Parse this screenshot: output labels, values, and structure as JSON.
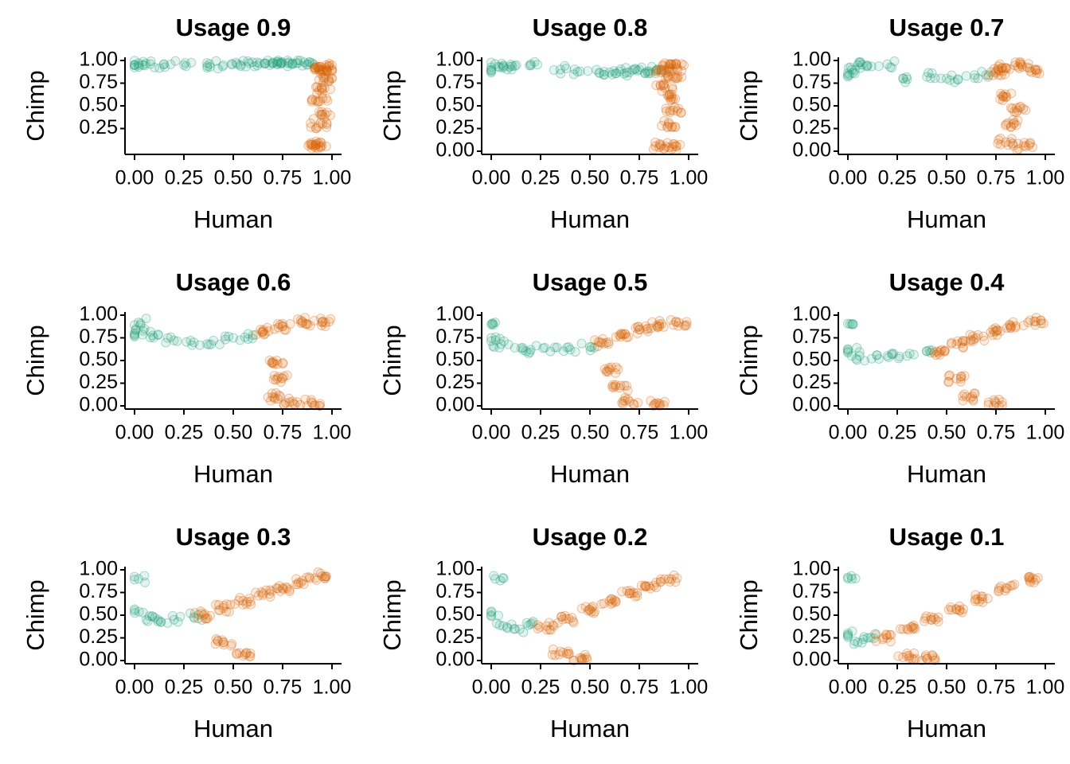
{
  "chart_data": [
    {
      "type": "scatter",
      "title": "Usage 0.9",
      "xlabel": "Human",
      "ylabel": "Chimp",
      "xlim": [
        0,
        1
      ],
      "ylim": [
        0.03,
        1.0
      ],
      "xticks": [
        "0.00",
        "0.25",
        "0.50",
        "0.75",
        "1.00"
      ],
      "yticks": [
        "0.25",
        "0.50",
        "0.75",
        "1.00"
      ],
      "series": [
        {
          "color": "#1b9e77",
          "values": [
            [
              0.0,
              0.95
            ],
            [
              0.02,
              0.97
            ],
            [
              0.08,
              0.96
            ],
            [
              0.15,
              0.96
            ],
            [
              0.25,
              0.95
            ],
            [
              0.38,
              0.96
            ],
            [
              0.45,
              0.95
            ],
            [
              0.52,
              0.96
            ],
            [
              0.58,
              0.97
            ],
            [
              0.62,
              0.98
            ],
            [
              0.66,
              0.97
            ],
            [
              0.7,
              0.98
            ],
            [
              0.74,
              0.97
            ],
            [
              0.78,
              0.98
            ],
            [
              0.82,
              0.97
            ],
            [
              0.86,
              0.98
            ],
            [
              0.9,
              0.97
            ]
          ]
        },
        {
          "color": "#d95f02",
          "values": [
            [
              0.93,
              0.93
            ],
            [
              0.95,
              0.9
            ],
            [
              0.97,
              0.92
            ],
            [
              0.96,
              0.8
            ],
            [
              0.95,
              0.68
            ],
            [
              0.94,
              0.55
            ],
            [
              0.95,
              0.4
            ],
            [
              0.93,
              0.27
            ],
            [
              0.92,
              0.08
            ],
            [
              0.94,
              0.05
            ]
          ]
        }
      ]
    },
    {
      "type": "scatter",
      "title": "Usage 0.8",
      "xlabel": "Human",
      "ylabel": "Chimp",
      "xlim": [
        0,
        1
      ],
      "ylim": [
        0,
        1.0
      ],
      "xticks": [
        "0.00",
        "0.25",
        "0.50",
        "0.75",
        "1.00"
      ],
      "yticks": [
        "0.00",
        "0.25",
        "0.50",
        "0.75",
        "1.00"
      ],
      "series": [
        {
          "color": "#1b9e77",
          "values": [
            [
              0.0,
              0.9
            ],
            [
              0.02,
              0.96
            ],
            [
              0.06,
              0.92
            ],
            [
              0.12,
              0.94
            ],
            [
              0.2,
              0.96
            ],
            [
              0.35,
              0.9
            ],
            [
              0.45,
              0.88
            ],
            [
              0.55,
              0.86
            ],
            [
              0.6,
              0.87
            ],
            [
              0.65,
              0.88
            ],
            [
              0.7,
              0.87
            ],
            [
              0.75,
              0.9
            ],
            [
              0.8,
              0.88
            ],
            [
              0.84,
              0.9
            ]
          ]
        },
        {
          "color": "#d95f02",
          "values": [
            [
              0.86,
              0.9
            ],
            [
              0.9,
              0.93
            ],
            [
              0.94,
              0.92
            ],
            [
              0.92,
              0.82
            ],
            [
              0.88,
              0.7
            ],
            [
              0.9,
              0.6
            ],
            [
              0.92,
              0.45
            ],
            [
              0.9,
              0.3
            ],
            [
              0.86,
              0.06
            ],
            [
              0.92,
              0.05
            ]
          ]
        }
      ]
    },
    {
      "type": "scatter",
      "title": "Usage 0.7",
      "xlabel": "Human",
      "ylabel": "Chimp",
      "xlim": [
        0,
        1
      ],
      "ylim": [
        0,
        1.0
      ],
      "xticks": [
        "0.00",
        "0.25",
        "0.50",
        "0.75",
        "1.00"
      ],
      "yticks": [
        "0.00",
        "0.25",
        "0.50",
        "0.75",
        "1.00"
      ],
      "series": [
        {
          "color": "#1b9e77",
          "values": [
            [
              0.0,
              0.82
            ],
            [
              0.02,
              0.9
            ],
            [
              0.05,
              0.95
            ],
            [
              0.1,
              0.94
            ],
            [
              0.2,
              0.96
            ],
            [
              0.28,
              0.8
            ],
            [
              0.4,
              0.82
            ],
            [
              0.5,
              0.8
            ],
            [
              0.6,
              0.83
            ],
            [
              0.7,
              0.84
            ]
          ]
        },
        {
          "color": "#d95f02",
          "values": [
            [
              0.75,
              0.88
            ],
            [
              0.8,
              0.92
            ],
            [
              0.88,
              0.95
            ],
            [
              0.95,
              0.9
            ],
            [
              0.8,
              0.6
            ],
            [
              0.86,
              0.45
            ],
            [
              0.84,
              0.3
            ],
            [
              0.8,
              0.1
            ],
            [
              0.9,
              0.05
            ]
          ]
        }
      ]
    },
    {
      "type": "scatter",
      "title": "Usage 0.6",
      "xlabel": "Human",
      "ylabel": "Chimp",
      "xlim": [
        0,
        1
      ],
      "ylim": [
        0,
        1.0
      ],
      "xticks": [
        "0.00",
        "0.25",
        "0.50",
        "0.75",
        "1.00"
      ],
      "yticks": [
        "0.00",
        "0.25",
        "0.50",
        "0.75",
        "1.00"
      ],
      "series": [
        {
          "color": "#1b9e77",
          "values": [
            [
              0.0,
              0.8
            ],
            [
              0.02,
              0.92
            ],
            [
              0.05,
              0.85
            ],
            [
              0.12,
              0.78
            ],
            [
              0.2,
              0.72
            ],
            [
              0.3,
              0.7
            ],
            [
              0.4,
              0.72
            ],
            [
              0.5,
              0.75
            ],
            [
              0.6,
              0.78
            ]
          ]
        },
        {
          "color": "#d95f02",
          "values": [
            [
              0.65,
              0.82
            ],
            [
              0.75,
              0.88
            ],
            [
              0.85,
              0.93
            ],
            [
              0.95,
              0.92
            ],
            [
              0.72,
              0.5
            ],
            [
              0.75,
              0.3
            ],
            [
              0.7,
              0.1
            ],
            [
              0.8,
              0.05
            ],
            [
              0.9,
              0.03
            ]
          ]
        }
      ]
    },
    {
      "type": "scatter",
      "title": "Usage 0.5",
      "xlabel": "Human",
      "ylabel": "Chimp",
      "xlim": [
        0,
        1
      ],
      "ylim": [
        0,
        1.0
      ],
      "xticks": [
        "0.00",
        "0.25",
        "0.50",
        "0.75",
        "1.00"
      ],
      "yticks": [
        "0.00",
        "0.25",
        "0.50",
        "0.75",
        "1.00"
      ],
      "series": [
        {
          "color": "#1b9e77",
          "values": [
            [
              0.0,
              0.75
            ],
            [
              0.02,
              0.92
            ],
            [
              0.05,
              0.68
            ],
            [
              0.12,
              0.64
            ],
            [
              0.2,
              0.62
            ],
            [
              0.3,
              0.6
            ],
            [
              0.4,
              0.62
            ],
            [
              0.5,
              0.65
            ]
          ]
        },
        {
          "color": "#d95f02",
          "values": [
            [
              0.55,
              0.7
            ],
            [
              0.65,
              0.78
            ],
            [
              0.75,
              0.84
            ],
            [
              0.85,
              0.9
            ],
            [
              0.95,
              0.92
            ],
            [
              0.6,
              0.4
            ],
            [
              0.65,
              0.2
            ],
            [
              0.7,
              0.05
            ],
            [
              0.85,
              0.03
            ]
          ]
        }
      ]
    },
    {
      "type": "scatter",
      "title": "Usage 0.4",
      "xlabel": "Human",
      "ylabel": "Chimp",
      "xlim": [
        0,
        1
      ],
      "ylim": [
        0,
        1.0
      ],
      "xticks": [
        "0.00",
        "0.25",
        "0.50",
        "0.75",
        "1.00"
      ],
      "yticks": [
        "0.00",
        "0.25",
        "0.50",
        "0.75",
        "1.00"
      ],
      "series": [
        {
          "color": "#1b9e77",
          "values": [
            [
              0.0,
              0.6
            ],
            [
              0.02,
              0.9
            ],
            [
              0.06,
              0.55
            ],
            [
              0.12,
              0.52
            ],
            [
              0.2,
              0.55
            ],
            [
              0.3,
              0.55
            ],
            [
              0.4,
              0.6
            ]
          ]
        },
        {
          "color": "#d95f02",
          "values": [
            [
              0.45,
              0.6
            ],
            [
              0.55,
              0.68
            ],
            [
              0.65,
              0.75
            ],
            [
              0.75,
              0.82
            ],
            [
              0.85,
              0.88
            ],
            [
              0.95,
              0.93
            ],
            [
              0.55,
              0.3
            ],
            [
              0.6,
              0.1
            ],
            [
              0.75,
              0.03
            ]
          ]
        }
      ]
    },
    {
      "type": "scatter",
      "title": "Usage 0.3",
      "xlabel": "Human",
      "ylabel": "Chimp",
      "xlim": [
        0,
        1
      ],
      "ylim": [
        0,
        1.0
      ],
      "xticks": [
        "0.00",
        "0.25",
        "0.50",
        "0.75",
        "1.00"
      ],
      "yticks": [
        "0.00",
        "0.25",
        "0.50",
        "0.75",
        "1.00"
      ],
      "series": [
        {
          "color": "#1b9e77",
          "values": [
            [
              0.0,
              0.55
            ],
            [
              0.02,
              0.9
            ],
            [
              0.06,
              0.45
            ],
            [
              0.12,
              0.45
            ],
            [
              0.2,
              0.45
            ],
            [
              0.3,
              0.48
            ]
          ]
        },
        {
          "color": "#d95f02",
          "values": [
            [
              0.35,
              0.5
            ],
            [
              0.45,
              0.58
            ],
            [
              0.55,
              0.66
            ],
            [
              0.65,
              0.74
            ],
            [
              0.75,
              0.8
            ],
            [
              0.85,
              0.88
            ],
            [
              0.95,
              0.93
            ],
            [
              0.45,
              0.2
            ],
            [
              0.55,
              0.05
            ]
          ]
        }
      ]
    },
    {
      "type": "scatter",
      "title": "Usage 0.2",
      "xlabel": "Human",
      "ylabel": "Chimp",
      "xlim": [
        0,
        1
      ],
      "ylim": [
        0,
        1.0
      ],
      "xticks": [
        "0.00",
        "0.25",
        "0.50",
        "0.75",
        "1.00"
      ],
      "yticks": [
        "0.00",
        "0.25",
        "0.50",
        "0.75",
        "1.00"
      ],
      "series": [
        {
          "color": "#1b9e77",
          "values": [
            [
              0.0,
              0.5
            ],
            [
              0.02,
              0.9
            ],
            [
              0.06,
              0.38
            ],
            [
              0.12,
              0.35
            ],
            [
              0.2,
              0.4
            ]
          ]
        },
        {
          "color": "#d95f02",
          "values": [
            [
              0.28,
              0.38
            ],
            [
              0.38,
              0.46
            ],
            [
              0.5,
              0.56
            ],
            [
              0.6,
              0.66
            ],
            [
              0.7,
              0.74
            ],
            [
              0.8,
              0.82
            ],
            [
              0.9,
              0.9
            ],
            [
              0.35,
              0.1
            ],
            [
              0.45,
              0.03
            ]
          ]
        }
      ]
    },
    {
      "type": "scatter",
      "title": "Usage 0.1",
      "xlabel": "Human",
      "ylabel": "Chimp",
      "xlim": [
        0,
        1
      ],
      "ylim": [
        0,
        1.0
      ],
      "xticks": [
        "0.00",
        "0.25",
        "0.50",
        "0.75",
        "1.00"
      ],
      "yticks": [
        "0.00",
        "0.25",
        "0.50",
        "0.75",
        "1.00"
      ],
      "series": [
        {
          "color": "#1b9e77",
          "values": [
            [
              0.0,
              0.3
            ],
            [
              0.02,
              0.9
            ],
            [
              0.05,
              0.2
            ],
            [
              0.1,
              0.25
            ]
          ]
        },
        {
          "color": "#d95f02",
          "values": [
            [
              0.18,
              0.25
            ],
            [
              0.3,
              0.35
            ],
            [
              0.42,
              0.45
            ],
            [
              0.55,
              0.56
            ],
            [
              0.68,
              0.68
            ],
            [
              0.8,
              0.8
            ],
            [
              0.92,
              0.9
            ],
            [
              0.3,
              0.05
            ],
            [
              0.4,
              0.02
            ]
          ]
        }
      ]
    }
  ]
}
